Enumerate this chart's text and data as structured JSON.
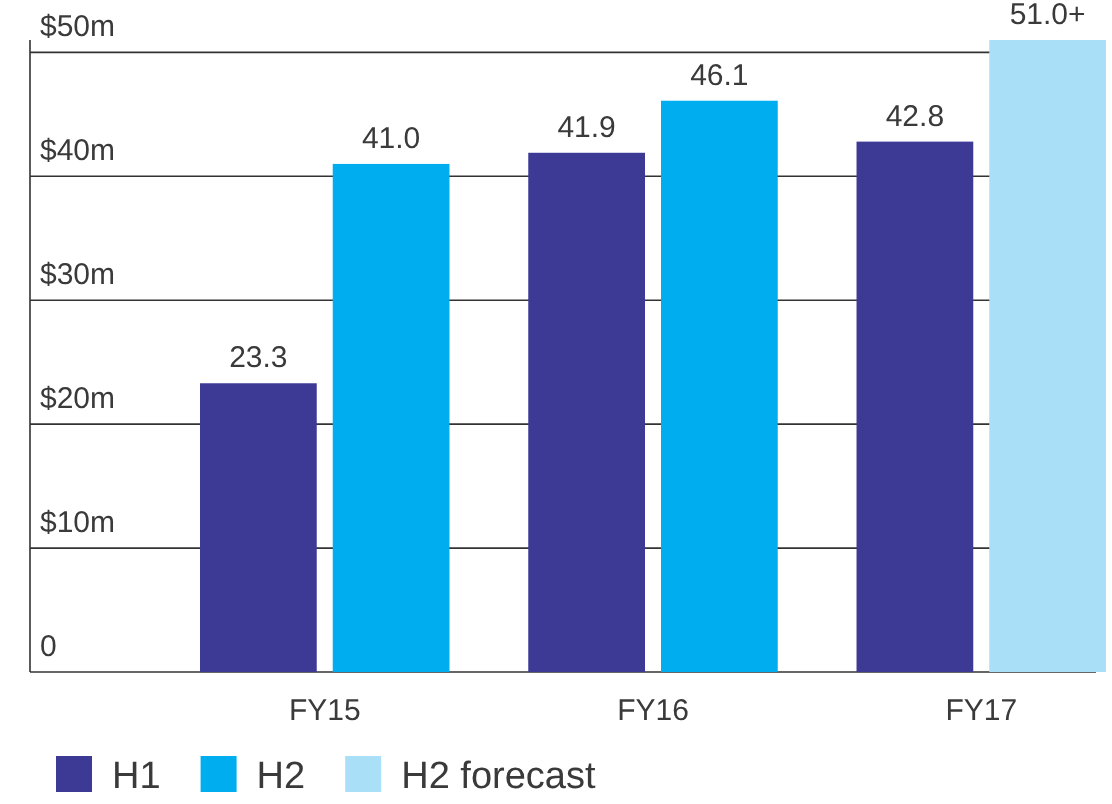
{
  "chart_data": {
    "type": "bar",
    "categories": [
      "FY15",
      "FY16",
      "FY17"
    ],
    "series": [
      {
        "name": "H1",
        "color": "#3d3a96",
        "values": [
          23.3,
          41.9,
          42.8
        ],
        "value_labels": [
          "23.3",
          "41.9",
          "42.8"
        ]
      },
      {
        "name": "H2",
        "color": "#00aeef",
        "values": [
          41.0,
          46.1,
          null
        ],
        "value_labels": [
          "41.0",
          "46.1",
          null
        ]
      },
      {
        "name": "H2 forecast",
        "color": "#a9dff7",
        "values": [
          null,
          null,
          51.0
        ],
        "value_labels": [
          null,
          null,
          "51.0+"
        ]
      }
    ],
    "ylim": [
      0,
      51
    ],
    "yticks": [
      0,
      {
        "value": 10,
        "label": "$10m"
      },
      {
        "value": 20,
        "label": "$20m"
      },
      {
        "value": 30,
        "label": "$30m"
      },
      {
        "value": 40,
        "label": "$40m"
      },
      {
        "value": 50,
        "label": "$50m"
      }
    ],
    "grid": "y",
    "legend": "bottom left"
  }
}
